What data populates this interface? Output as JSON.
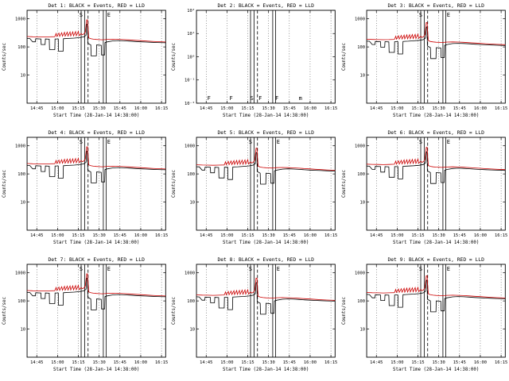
{
  "page": {
    "background": "#ffffff"
  },
  "chart_data": {
    "type": "line",
    "grid": {
      "rows": 3,
      "cols": 3
    },
    "xlabel": "Start Time (28-Jan-14 14:38:00)",
    "ylabel": "Counts/sec",
    "colors": {
      "events": "#000000",
      "lld": "#cc0000",
      "frame": "#000000"
    },
    "legend": [
      {
        "name": "Events",
        "color": "#000000"
      },
      {
        "name": "LLD",
        "color": "#cc0000"
      }
    ],
    "x_ticks": {
      "minutes": [
        7,
        22,
        37,
        52,
        67,
        82,
        97
      ],
      "labels": [
        "14:45",
        "15:00",
        "15:15",
        "15:30",
        "15:45",
        "16:00",
        "16:15"
      ]
    },
    "x_range_minutes": [
      0,
      100
    ],
    "vlines": {
      "dotted_at_ticks": true,
      "solid": [
        39,
        41.5,
        55,
        57
      ],
      "dashed": [
        44
      ]
    },
    "series_base": {
      "events": [
        [
          0,
          200
        ],
        [
          2,
          198
        ],
        [
          4,
          152
        ],
        [
          6,
          152
        ],
        [
          6.2,
          195
        ],
        [
          10,
          192
        ],
        [
          10.2,
          122
        ],
        [
          13,
          122
        ],
        [
          13.2,
          192
        ],
        [
          16,
          188
        ],
        [
          16.2,
          80
        ],
        [
          20,
          80
        ],
        [
          20.2,
          192
        ],
        [
          22.5,
          192
        ],
        [
          22.7,
          70
        ],
        [
          26,
          70
        ],
        [
          26.2,
          196
        ],
        [
          30,
          200
        ],
        [
          34,
          206
        ],
        [
          38,
          214
        ],
        [
          41,
          228
        ],
        [
          42.5,
          260
        ],
        [
          43,
          640
        ],
        [
          43.6,
          640
        ],
        [
          43.8,
          135
        ],
        [
          46,
          118
        ],
        [
          46.2,
          48
        ],
        [
          50,
          48
        ],
        [
          50.2,
          118
        ],
        [
          53.5,
          114
        ],
        [
          53.7,
          52
        ],
        [
          56,
          52
        ],
        [
          56.2,
          142
        ],
        [
          58,
          152
        ],
        [
          62,
          164
        ],
        [
          66,
          168
        ],
        [
          70,
          165
        ],
        [
          74,
          161
        ],
        [
          78,
          156
        ],
        [
          82,
          152
        ],
        [
          86,
          149
        ],
        [
          90,
          146
        ],
        [
          94,
          143
        ],
        [
          100,
          140
        ]
      ],
      "lld": [
        [
          0,
          235
        ],
        [
          4,
          230
        ],
        [
          8,
          228
        ],
        [
          12,
          226
        ],
        [
          16,
          228
        ],
        [
          20,
          232
        ],
        [
          21,
          300
        ],
        [
          21.5,
          236
        ],
        [
          23,
          310
        ],
        [
          23.5,
          238
        ],
        [
          25,
          320
        ],
        [
          25.5,
          240
        ],
        [
          27,
          330
        ],
        [
          27.5,
          242
        ],
        [
          29,
          335
        ],
        [
          29.5,
          244
        ],
        [
          31,
          340
        ],
        [
          31.5,
          246
        ],
        [
          33,
          345
        ],
        [
          33.5,
          248
        ],
        [
          35,
          350
        ],
        [
          35.5,
          250
        ],
        [
          37,
          355
        ],
        [
          37.5,
          252
        ],
        [
          39,
          300
        ],
        [
          40,
          270
        ],
        [
          41,
          290
        ],
        [
          42,
          340
        ],
        [
          43,
          920
        ],
        [
          43.6,
          920
        ],
        [
          44,
          430
        ],
        [
          44.5,
          210
        ],
        [
          46,
          195
        ],
        [
          48,
          188
        ],
        [
          50,
          184
        ],
        [
          52,
          182
        ],
        [
          54,
          180
        ],
        [
          56,
          182
        ],
        [
          58,
          186
        ],
        [
          62,
          188
        ],
        [
          66,
          186
        ],
        [
          70,
          182
        ],
        [
          74,
          177
        ],
        [
          78,
          172
        ],
        [
          82,
          167
        ],
        [
          86,
          162
        ],
        [
          90,
          158
        ],
        [
          94,
          154
        ],
        [
          100,
          150
        ]
      ]
    },
    "charts": [
      {
        "title": "Det 1: BLACK = Events, RED = LLD",
        "has_data": true,
        "scale": 1.0,
        "ylim": [
          1,
          2000
        ],
        "y_ticks": [
          {
            "v": 1000,
            "label": "1000"
          },
          {
            "v": 100,
            "label": "100"
          },
          {
            "v": 10,
            "label": "10"
          }
        ],
        "top_letters": [
          [
            39,
            "S"
          ],
          [
            59,
            "E"
          ]
        ]
      },
      {
        "title": "Det 2: BLACK = Events, RED = LLD",
        "has_data": false,
        "scale": 1.0,
        "ylim": [
          0.01,
          100
        ],
        "y_ticks": [
          {
            "v": 100,
            "label": "10²"
          },
          {
            "v": 10,
            "label": "10¹"
          },
          {
            "v": 1,
            "label": "10⁰"
          },
          {
            "v": 0.1,
            "label": "10⁻¹"
          },
          {
            "v": 0.01,
            "label": "10⁻²"
          }
        ],
        "bottom_letters": [
          [
            9,
            "F"
          ],
          [
            25,
            "F"
          ],
          [
            40,
            "S"
          ],
          [
            46,
            "F"
          ],
          [
            58,
            "F"
          ],
          [
            75,
            "m"
          ]
        ]
      },
      {
        "title": "Det 3: BLACK = Events, RED = LLD",
        "has_data": true,
        "scale": 0.8,
        "ylim": [
          1,
          2000
        ],
        "y_ticks": [
          {
            "v": 1000,
            "label": "1000"
          },
          {
            "v": 100,
            "label": "100"
          },
          {
            "v": 10,
            "label": "10"
          }
        ],
        "top_letters": [
          [
            39,
            "S"
          ],
          [
            59,
            "E"
          ]
        ]
      },
      {
        "title": "Det 4: BLACK = Events, RED = LLD",
        "has_data": true,
        "scale": 1.0,
        "ylim": [
          1,
          2000
        ],
        "y_ticks": [
          {
            "v": 1000,
            "label": "1000"
          },
          {
            "v": 100,
            "label": "100"
          },
          {
            "v": 10,
            "label": "10"
          }
        ],
        "top_letters": [
          [
            39,
            "S"
          ],
          [
            59,
            "E"
          ]
        ]
      },
      {
        "title": "Det 5: BLACK = Events, RED = LLD",
        "has_data": true,
        "scale": 0.9,
        "ylim": [
          1,
          2000
        ],
        "y_ticks": [
          {
            "v": 1000,
            "label": "1000"
          },
          {
            "v": 100,
            "label": "100"
          },
          {
            "v": 10,
            "label": "10"
          }
        ],
        "top_letters": [
          [
            39,
            "S"
          ],
          [
            59,
            "E"
          ]
        ]
      },
      {
        "title": "Det 6: BLACK = Events, RED = LLD",
        "has_data": true,
        "scale": 0.95,
        "ylim": [
          1,
          2000
        ],
        "y_ticks": [
          {
            "v": 1000,
            "label": "1000"
          },
          {
            "v": 100,
            "label": "100"
          },
          {
            "v": 10,
            "label": "10"
          }
        ],
        "top_letters": [
          [
            39,
            "S"
          ],
          [
            59,
            "E"
          ]
        ]
      },
      {
        "title": "Det 7: BLACK = Events, RED = LLD",
        "has_data": true,
        "scale": 1.0,
        "ylim": [
          1,
          2000
        ],
        "y_ticks": [
          {
            "v": 1000,
            "label": "1000"
          },
          {
            "v": 100,
            "label": "100"
          },
          {
            "v": 10,
            "label": "10"
          }
        ],
        "top_letters": [
          [
            39,
            "S"
          ],
          [
            59,
            "E"
          ]
        ]
      },
      {
        "title": "Det 8: BLACK = Events, RED = LLD",
        "has_data": true,
        "scale": 0.7,
        "ylim": [
          1,
          2000
        ],
        "y_ticks": [
          {
            "v": 1000,
            "label": "1000"
          },
          {
            "v": 100,
            "label": "100"
          },
          {
            "v": 10,
            "label": "10"
          }
        ],
        "top_letters": [
          [
            39,
            "S"
          ],
          [
            59,
            "E"
          ]
        ]
      },
      {
        "title": "Det 9: BLACK = Events, RED = LLD",
        "has_data": true,
        "scale": 0.85,
        "ylim": [
          1,
          2000
        ],
        "y_ticks": [
          {
            "v": 1000,
            "label": "1000"
          },
          {
            "v": 100,
            "label": "100"
          },
          {
            "v": 10,
            "label": "10"
          }
        ],
        "top_letters": [
          [
            39,
            "S"
          ],
          [
            59,
            "E"
          ]
        ]
      }
    ]
  }
}
